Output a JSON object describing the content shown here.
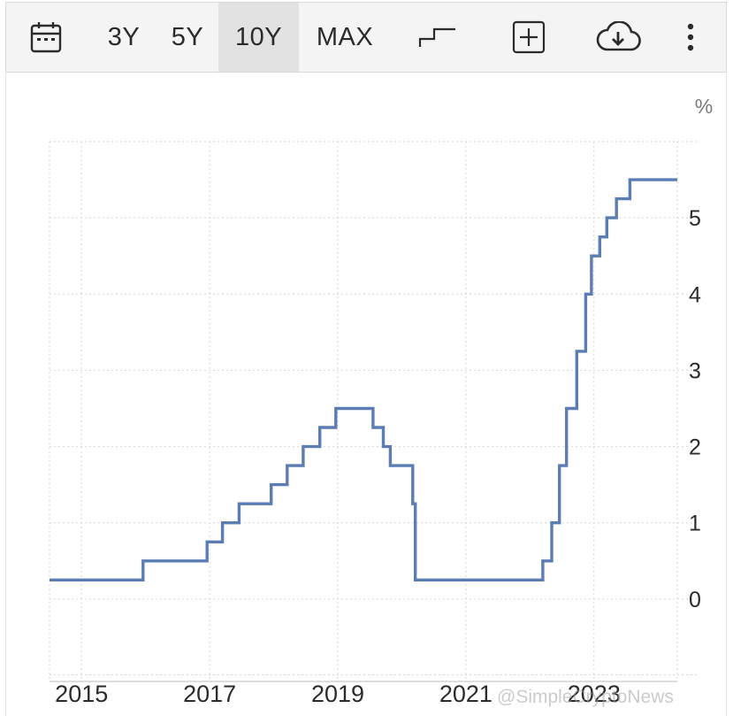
{
  "toolbar": {
    "calendar_icon": "calendar-icon",
    "ranges": [
      "3Y",
      "5Y",
      "10Y",
      "MAX"
    ],
    "active_range": "10Y",
    "chart_type_icon": "step-line-icon",
    "add_icon": "add-square-icon",
    "download_icon": "cloud-download-icon",
    "more_icon": "more-vertical-icon"
  },
  "watermark": "@SimpleCryptoNews",
  "colors": {
    "line": "#5b7db3",
    "grid": "#d6d6d6",
    "axis_text": "#2b2b2b",
    "unit_text": "#7a7a7a"
  },
  "chart_data": {
    "type": "line",
    "step": true,
    "title": "",
    "xlabel": "",
    "ylabel": "%",
    "unit": "%",
    "y_axis_side": "right",
    "grid": true,
    "xlim": [
      2014.5,
      2024.3
    ],
    "ylim": [
      -1,
      6
    ],
    "x_ticks": [
      2015,
      2017,
      2019,
      2021,
      2023
    ],
    "x_tick_labels": [
      "2015",
      "2017",
      "2019",
      "2021",
      "2023"
    ],
    "x_gridlines": [
      2015,
      2017,
      2019,
      2021,
      2023
    ],
    "y_ticks": [
      0,
      1,
      2,
      3,
      4,
      5
    ],
    "y_tick_labels": [
      "0",
      "1",
      "2",
      "3",
      "4",
      "5"
    ],
    "series": [
      {
        "values": [
          [
            2014.5,
            0.25
          ],
          [
            2015.96,
            0.5
          ],
          [
            2016.96,
            0.75
          ],
          [
            2017.2,
            1.0
          ],
          [
            2017.46,
            1.25
          ],
          [
            2017.96,
            1.5
          ],
          [
            2018.21,
            1.75
          ],
          [
            2018.46,
            2.0
          ],
          [
            2018.72,
            2.25
          ],
          [
            2018.97,
            2.5
          ],
          [
            2019.55,
            2.25
          ],
          [
            2019.71,
            2.0
          ],
          [
            2019.82,
            1.75
          ],
          [
            2020.17,
            1.25
          ],
          [
            2020.21,
            0.25
          ],
          [
            2022.2,
            0.5
          ],
          [
            2022.34,
            1.0
          ],
          [
            2022.46,
            1.75
          ],
          [
            2022.57,
            2.5
          ],
          [
            2022.73,
            3.25
          ],
          [
            2022.87,
            4.0
          ],
          [
            2022.96,
            4.5
          ],
          [
            2023.09,
            4.75
          ],
          [
            2023.2,
            5.0
          ],
          [
            2023.35,
            5.25
          ],
          [
            2023.56,
            5.5
          ],
          [
            2024.3,
            5.5
          ]
        ]
      }
    ]
  }
}
